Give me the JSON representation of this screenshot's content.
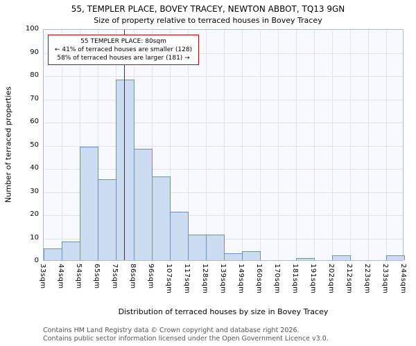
{
  "title": "55, TEMPLER PLACE, BOVEY TRACEY, NEWTON ABBOT, TQ13 9GN",
  "subtitle": "Size of property relative to terraced houses in Bovey Tracey",
  "chart_data": {
    "type": "bar",
    "bin_edges": [
      33,
      44,
      54,
      65,
      75,
      86,
      96,
      107,
      117,
      128,
      139,
      149,
      160,
      170,
      181,
      191,
      202,
      212,
      223,
      233,
      244
    ],
    "bin_label_suffix": "sqm",
    "values": [
      5,
      8,
      49,
      35,
      78,
      48,
      36,
      21,
      11,
      11,
      3,
      4,
      0,
      0,
      1,
      0,
      2,
      0,
      0,
      2
    ],
    "xlabel": "Distribution of terraced houses by size in Bovey Tracey",
    "ylabel": "Number of terraced properties",
    "ylim": [
      0,
      100
    ],
    "ytick_step": 10,
    "grid": true,
    "legend": "none",
    "marker": {
      "value": 80,
      "color": "#a40000"
    },
    "annotation": {
      "line1": "55 TEMPLER PLACE: 80sqm",
      "line2": "← 41% of terraced houses are smaller (128)",
      "line3": "58% of terraced houses are larger (181) →"
    },
    "colors": {
      "bar_fill": "#cddcf3",
      "bar_border": "#6390ca",
      "grid": "#dde3f1",
      "plot_bg": "#f8f9fe",
      "annotation_border": "#cc0000"
    }
  },
  "footer": {
    "line1": "Contains HM Land Registry data © Crown copyright and database right 2026.",
    "line2": "Contains public sector information licensed under the Open Government Licence v3.0."
  }
}
